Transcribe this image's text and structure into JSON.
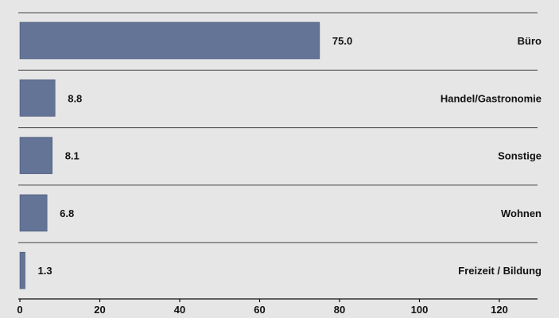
{
  "chart_data": {
    "type": "bar",
    "orientation": "horizontal",
    "categories": [
      "Büro",
      "Handel/Gastronomie",
      "Sonstige",
      "Wohnen",
      "Freizeit / Bildung"
    ],
    "values": [
      75.0,
      8.8,
      8.1,
      6.8,
      1.3
    ],
    "value_labels": [
      "75.0",
      "8.8",
      "8.1",
      "6.8",
      "1.3"
    ],
    "xlim": [
      0,
      130
    ],
    "xticks": [
      0,
      20,
      40,
      60,
      80,
      100,
      120
    ],
    "xtick_labels": [
      "0",
      "20",
      "40",
      "60",
      "80",
      "100",
      "120"
    ],
    "grid": false,
    "legend": "none",
    "colors": {
      "bar": "#647496",
      "bar_edge": "#4a5878",
      "background": "#e6e6e6",
      "separator": "#444444",
      "text": "#111111"
    }
  }
}
